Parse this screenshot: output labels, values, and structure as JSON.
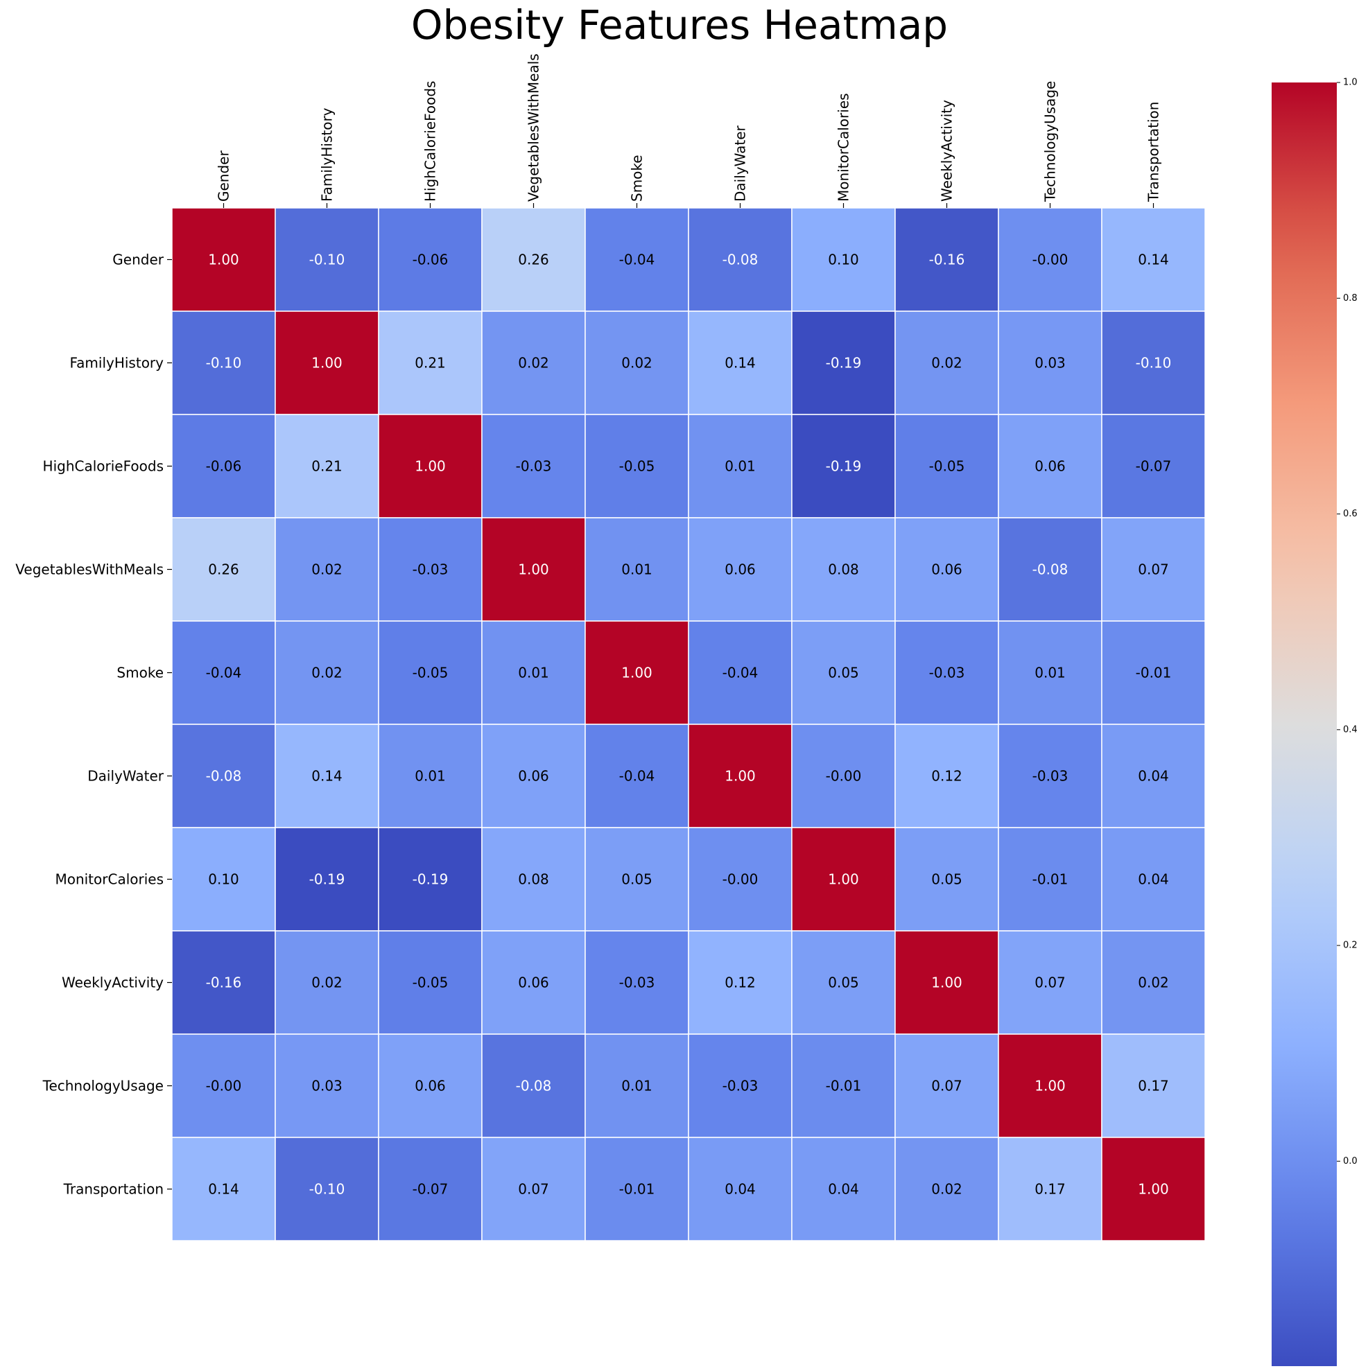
{
  "chart_data": {
    "type": "heatmap",
    "title": "Obesity Features Heatmap",
    "colormap": "coolwarm",
    "vmin": -0.19,
    "vmax": 1.0,
    "grid": false,
    "legend_placement": "right",
    "x_labels": [
      "Gender",
      "FamilyHistory",
      "HighCalorieFoods",
      "VegetablesWithMeals",
      "Smoke",
      "DailyWater",
      "MonitorCalories",
      "WeeklyActivity",
      "TechnologyUsage",
      "Transportation"
    ],
    "y_labels": [
      "Gender",
      "FamilyHistory",
      "HighCalorieFoods",
      "VegetablesWithMeals",
      "Smoke",
      "DailyWater",
      "MonitorCalories",
      "WeeklyActivity",
      "TechnologyUsage",
      "Transportation"
    ],
    "values": [
      [
        1.0,
        -0.1,
        -0.06,
        0.26,
        -0.04,
        -0.08,
        0.1,
        -0.16,
        -0.0,
        0.14
      ],
      [
        -0.1,
        1.0,
        0.21,
        0.02,
        0.02,
        0.14,
        -0.19,
        0.02,
        0.03,
        -0.1
      ],
      [
        -0.06,
        0.21,
        1.0,
        -0.03,
        -0.05,
        0.01,
        -0.19,
        -0.05,
        0.06,
        -0.07
      ],
      [
        0.26,
        0.02,
        -0.03,
        1.0,
        0.01,
        0.06,
        0.08,
        0.06,
        -0.08,
        0.07
      ],
      [
        -0.04,
        0.02,
        -0.05,
        0.01,
        1.0,
        -0.04,
        0.05,
        -0.03,
        0.01,
        -0.01
      ],
      [
        -0.08,
        0.14,
        0.01,
        0.06,
        -0.04,
        1.0,
        -0.0,
        0.12,
        -0.03,
        0.04
      ],
      [
        0.1,
        -0.19,
        -0.19,
        0.08,
        0.05,
        -0.0,
        1.0,
        0.05,
        -0.01,
        0.04
      ],
      [
        -0.16,
        0.02,
        -0.05,
        0.06,
        -0.03,
        0.12,
        0.05,
        1.0,
        0.07,
        0.02
      ],
      [
        -0.0,
        0.03,
        0.06,
        -0.08,
        0.01,
        -0.03,
        -0.01,
        0.07,
        1.0,
        0.17
      ],
      [
        0.14,
        -0.1,
        -0.07,
        0.07,
        -0.01,
        0.04,
        0.04,
        0.02,
        0.17,
        1.0
      ]
    ],
    "value_labels": [
      [
        "1.00",
        "-0.10",
        "-0.06",
        "0.26",
        "-0.04",
        "-0.08",
        "0.10",
        "-0.16",
        "-0.00",
        "0.14"
      ],
      [
        "-0.10",
        "1.00",
        "0.21",
        "0.02",
        "0.02",
        "0.14",
        "-0.19",
        "0.02",
        "0.03",
        "-0.10"
      ],
      [
        "-0.06",
        "0.21",
        "1.00",
        "-0.03",
        "-0.05",
        "0.01",
        "-0.19",
        "-0.05",
        "0.06",
        "-0.07"
      ],
      [
        "0.26",
        "0.02",
        "-0.03",
        "1.00",
        "0.01",
        "0.06",
        "0.08",
        "0.06",
        "-0.08",
        "0.07"
      ],
      [
        "-0.04",
        "0.02",
        "-0.05",
        "0.01",
        "1.00",
        "-0.04",
        "0.05",
        "-0.03",
        "0.01",
        "-0.01"
      ],
      [
        "-0.08",
        "0.14",
        "0.01",
        "0.06",
        "-0.04",
        "1.00",
        "-0.00",
        "0.12",
        "-0.03",
        "0.04"
      ],
      [
        "0.10",
        "-0.19",
        "-0.19",
        "0.08",
        "0.05",
        "-0.00",
        "1.00",
        "0.05",
        "-0.01",
        "0.04"
      ],
      [
        "-0.16",
        "0.02",
        "-0.05",
        "0.06",
        "-0.03",
        "0.12",
        "0.05",
        "1.00",
        "0.07",
        "0.02"
      ],
      [
        "-0.00",
        "0.03",
        "0.06",
        "-0.08",
        "0.01",
        "-0.03",
        "-0.01",
        "0.07",
        "1.00",
        "0.17"
      ],
      [
        "0.14",
        "-0.10",
        "-0.07",
        "0.07",
        "-0.01",
        "0.04",
        "0.04",
        "0.02",
        "0.17",
        "1.00"
      ]
    ],
    "colorbar": {
      "ticks": [
        0.0,
        0.2,
        0.4,
        0.6,
        0.8,
        1.0
      ],
      "tick_labels": [
        "0.0",
        "0.2",
        "0.4",
        "0.6",
        "0.8",
        "1.0"
      ]
    }
  }
}
